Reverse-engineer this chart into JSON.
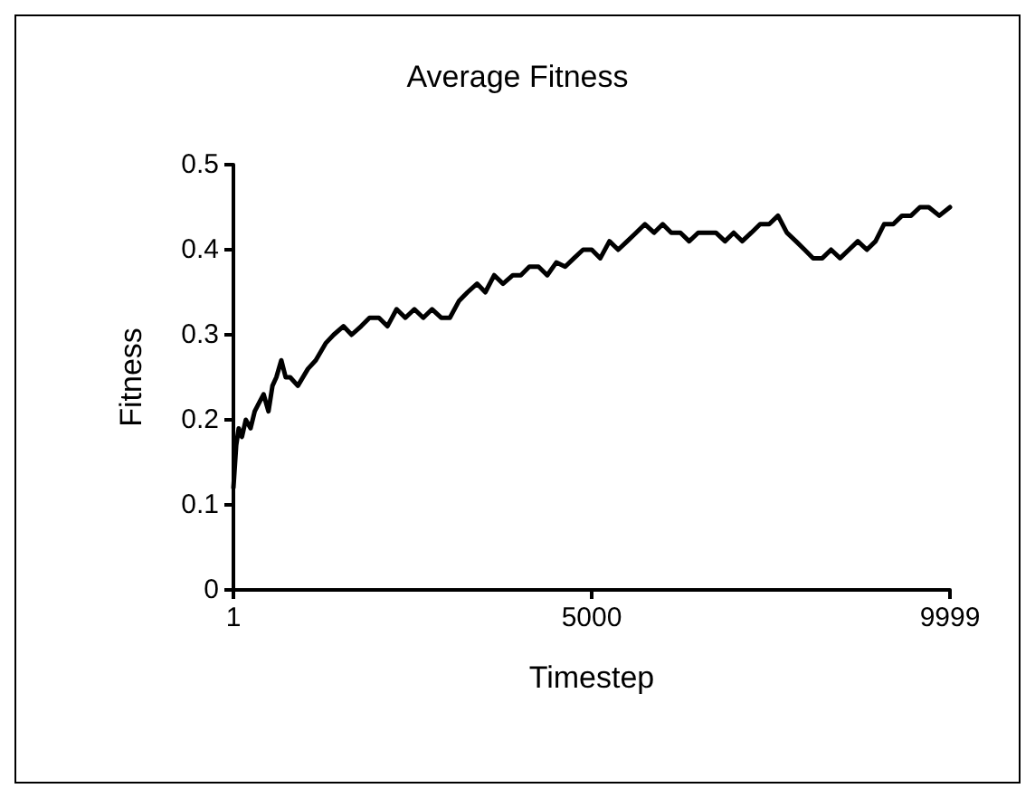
{
  "chart_data": {
    "type": "line",
    "title": "Average Fitness",
    "xlabel": "Timestep",
    "ylabel": "Fitness",
    "xlim": [
      1,
      9999
    ],
    "xticks": [
      1,
      5000,
      9999
    ],
    "ylim": [
      0,
      0.5
    ],
    "yticks": [
      0,
      0.1,
      0.2,
      0.3,
      0.4,
      0.5
    ],
    "grid": false,
    "marker": "none",
    "line_style": "solid",
    "series": [
      {
        "color": "#000000",
        "x": [
          1,
          40,
          75,
          120,
          174,
          240,
          298,
          360,
          422,
          490,
          546,
          600,
          669,
          730,
          793,
          900,
          1041,
          1150,
          1288,
          1400,
          1536,
          1650,
          1783,
          1900,
          2031,
          2150,
          2278,
          2400,
          2526,
          2650,
          2773,
          2900,
          3021,
          3150,
          3268,
          3400,
          3516,
          3640,
          3763,
          3900,
          4011,
          4130,
          4258,
          4380,
          4506,
          4630,
          4753,
          4880,
          5001,
          5120,
          5248,
          5370,
          5496,
          5620,
          5743,
          5870,
          5991,
          6110,
          6238,
          6360,
          6486,
          6610,
          6733,
          6860,
          6981,
          7100,
          7228,
          7350,
          7476,
          7600,
          7723,
          7850,
          7971,
          8090,
          8218,
          8340,
          8466,
          8590,
          8713,
          8840,
          8961,
          9080,
          9208,
          9330,
          9456,
          9580,
          9703,
          9850,
          9999
        ],
        "values": [
          0.12,
          0.17,
          0.19,
          0.18,
          0.2,
          0.19,
          0.21,
          0.22,
          0.23,
          0.21,
          0.24,
          0.25,
          0.27,
          0.25,
          0.25,
          0.24,
          0.26,
          0.27,
          0.29,
          0.3,
          0.31,
          0.3,
          0.31,
          0.32,
          0.32,
          0.31,
          0.33,
          0.32,
          0.33,
          0.32,
          0.33,
          0.32,
          0.32,
          0.34,
          0.35,
          0.36,
          0.35,
          0.37,
          0.36,
          0.37,
          0.37,
          0.38,
          0.38,
          0.37,
          0.385,
          0.38,
          0.39,
          0.4,
          0.4,
          0.39,
          0.41,
          0.4,
          0.41,
          0.42,
          0.43,
          0.42,
          0.43,
          0.42,
          0.42,
          0.41,
          0.42,
          0.42,
          0.42,
          0.41,
          0.42,
          0.41,
          0.42,
          0.43,
          0.43,
          0.44,
          0.42,
          0.41,
          0.4,
          0.39,
          0.39,
          0.4,
          0.39,
          0.4,
          0.41,
          0.4,
          0.41,
          0.43,
          0.43,
          0.44,
          0.44,
          0.45,
          0.45,
          0.44,
          0.45
        ]
      }
    ]
  }
}
